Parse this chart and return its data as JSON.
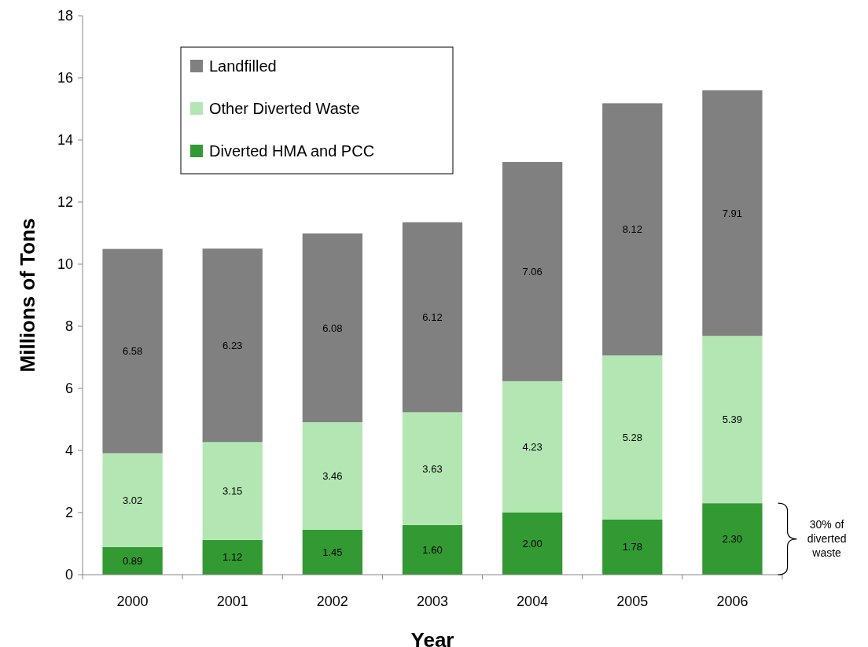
{
  "chart_data": {
    "type": "bar",
    "stacked": true,
    "xlabel": "Year",
    "ylabel": "Millions of Tons",
    "categories": [
      "2000",
      "2001",
      "2002",
      "2003",
      "2004",
      "2005",
      "2006"
    ],
    "series": [
      {
        "name": "Diverted HMA and PCC",
        "color": "#339933",
        "values": [
          0.89,
          1.12,
          1.45,
          1.6,
          2.0,
          1.78,
          2.3
        ],
        "value_labels": [
          "0.89",
          "1.12",
          "1.45",
          "1.60",
          "2.00",
          "1.78",
          "2.30"
        ]
      },
      {
        "name": "Other Diverted Waste",
        "color": "#b3e6b3",
        "values": [
          3.02,
          3.15,
          3.46,
          3.63,
          4.23,
          5.28,
          5.39
        ],
        "value_labels": [
          "3.02",
          "3.15",
          "3.46",
          "3.63",
          "4.23",
          "5.28",
          "5.39"
        ]
      },
      {
        "name": "Landfilled",
        "color": "#808080",
        "values": [
          6.58,
          6.23,
          6.08,
          6.12,
          7.06,
          8.12,
          7.91
        ],
        "value_labels": [
          "6.58",
          "6.23",
          "6.08",
          "6.12",
          "7.06",
          "8.12",
          "7.91"
        ]
      }
    ],
    "ylim": [
      0,
      18
    ],
    "yticks": [
      0,
      2,
      4,
      6,
      8,
      10,
      12,
      14,
      16,
      18
    ],
    "grid": false,
    "legend": "top left",
    "annotations": [
      "30% of diverted waste"
    ]
  }
}
